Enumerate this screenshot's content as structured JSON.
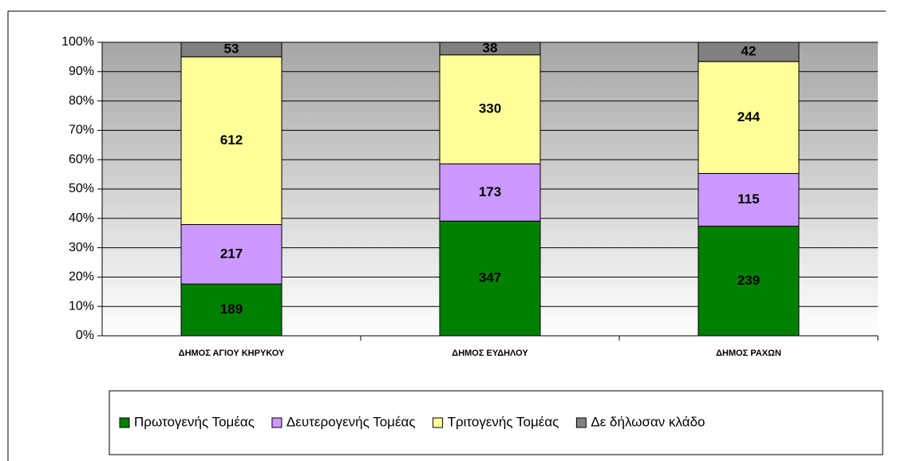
{
  "chart_data": {
    "type": "bar",
    "stacking": "percent",
    "categories": [
      "ΔΗΜΟΣ ΑΓΙΟΥ ΚΗΡΥΚΟΥ",
      "ΔΗΜΟΣ ΕΥΔΗΛΟΥ",
      "ΔΗΜΟΣ ΡΑΧΩΝ"
    ],
    "series": [
      {
        "name": "Πρωτογενής Τομέας",
        "color": "#008000",
        "values": [
          189,
          347,
          239
        ]
      },
      {
        "name": "Δευτερογενής Τομέας",
        "color": "#cc99ff",
        "values": [
          217,
          173,
          115
        ]
      },
      {
        "name": "Τριτογενής Τομέας",
        "color": "#ffff99",
        "values": [
          612,
          330,
          244
        ]
      },
      {
        "name": "Δε δήλωσαν κλάδο",
        "color": "#808080",
        "values": [
          53,
          38,
          42
        ]
      }
    ],
    "ylim": [
      0,
      100
    ],
    "yticks": [
      {
        "value": 0,
        "label": "0%"
      },
      {
        "value": 10,
        "label": "10%"
      },
      {
        "value": 20,
        "label": "20%"
      },
      {
        "value": 30,
        "label": "30%"
      },
      {
        "value": 40,
        "label": "40%"
      },
      {
        "value": 50,
        "label": "50%"
      },
      {
        "value": 60,
        "label": "60%"
      },
      {
        "value": 70,
        "label": "70%"
      },
      {
        "value": 80,
        "label": "80%"
      },
      {
        "value": 90,
        "label": "90%"
      },
      {
        "value": 100,
        "label": "100%"
      }
    ],
    "grid": true,
    "legend": "bottom"
  }
}
